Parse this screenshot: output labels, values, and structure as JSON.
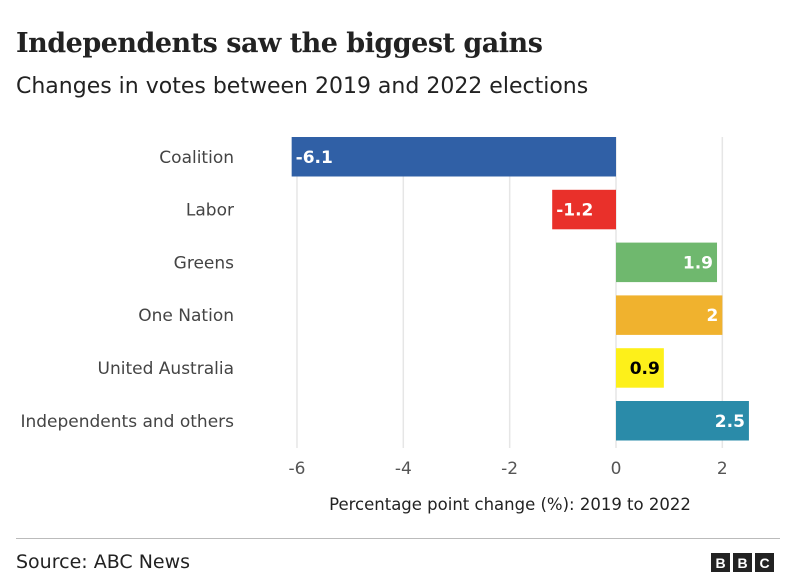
{
  "title": "Independents saw the biggest gains",
  "subtitle": "Changes in votes between 2019 and 2022 elections",
  "chart_data": {
    "type": "bar",
    "orientation": "horizontal",
    "categories": [
      "Coalition",
      "Labor",
      "Greens",
      "One Nation",
      "United Australia",
      "Independents and others"
    ],
    "values": [
      -6.1,
      -1.2,
      1.9,
      2,
      0.9,
      2.5
    ],
    "value_labels": [
      "-6.1",
      "-1.2",
      "1.9",
      "2",
      "0.9",
      "2.5"
    ],
    "colors": [
      "#3060a6",
      "#e9302a",
      "#6fb86e",
      "#f0b22e",
      "#fdf01a",
      "#2a8ba9"
    ],
    "label_colors": [
      "#ffffff",
      "#ffffff",
      "#ffffff",
      "#ffffff",
      "#000000",
      "#ffffff"
    ],
    "xlabel": "Percentage point change (%): 2019 to 2022",
    "xlim": [
      -6.3,
      2.5
    ],
    "xticks": [
      -6,
      -4,
      -2,
      0,
      2
    ],
    "xtick_labels": [
      "-6",
      "-4",
      "-2",
      "0",
      "2"
    ],
    "grid": "vertical"
  },
  "footer": {
    "source": "Source: ABC News",
    "logo": [
      "B",
      "B",
      "C"
    ]
  }
}
